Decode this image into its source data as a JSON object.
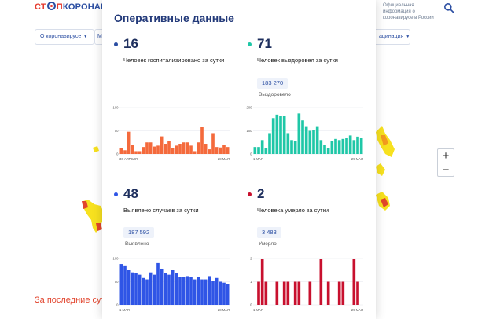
{
  "header": {
    "logo_part1": "СТ",
    "logo_part2": "П",
    "logo_part3": "КОРОНАВИ",
    "info_text": "Официальная информация о коронавирусе в России",
    "search_icon": "search-icon"
  },
  "nav": {
    "item1": "О коронавирусе",
    "item2": "М",
    "item3": "ацинация"
  },
  "map": {
    "bottom_link": "За последние сутки",
    "zoom_in": "+",
    "zoom_out": "−"
  },
  "panel": {
    "title": "Оперативные данные",
    "stats": [
      {
        "value": "16",
        "label": "Человек госпитализировано за сутки",
        "total": "",
        "total_label": "",
        "color": "#f46a3c",
        "dot_color": "#2b4ea2"
      },
      {
        "value": "71",
        "label": "Человек выздоровел за сутки",
        "total": "183 270",
        "total_label": "Выздоровело",
        "color": "#1fc7a7",
        "dot_color": "#1fc7a7"
      },
      {
        "value": "48",
        "label": "Выявлено случаев за сутки",
        "total": "187 592",
        "total_label": "Выявлено",
        "color": "#2f55e6",
        "dot_color": "#2f55e6"
      },
      {
        "value": "2",
        "label": "Человека умерло за сутки",
        "total": "3 483",
        "total_label": "Умерло",
        "color": "#c8102e",
        "dot_color": "#c8102e"
      }
    ]
  },
  "chart_data": [
    {
      "type": "bar",
      "color": "#f46a3c",
      "ylim": [
        0,
        100
      ],
      "y_ticks": [
        "100",
        "50",
        "0"
      ],
      "x_start": "30 АПРЕЛЯ",
      "x_end": "28 МАЯ",
      "values": [
        12,
        8,
        48,
        20,
        6,
        6,
        15,
        25,
        25,
        16,
        18,
        38,
        22,
        28,
        12,
        18,
        22,
        25,
        25,
        18,
        6,
        25,
        58,
        22,
        10,
        45,
        15,
        14,
        20,
        15
      ]
    },
    {
      "type": "bar",
      "color": "#1fc7a7",
      "ylim": [
        0,
        200
      ],
      "y_ticks": [
        "200",
        "100",
        "0"
      ],
      "x_start": "1 МАЯ",
      "x_end": "29 МАЯ",
      "values": [
        30,
        30,
        60,
        25,
        90,
        155,
        170,
        165,
        165,
        90,
        60,
        55,
        175,
        145,
        120,
        100,
        105,
        120,
        60,
        40,
        25,
        55,
        65,
        60,
        65,
        70,
        80,
        60,
        75,
        70
      ]
    },
    {
      "type": "bar",
      "color": "#2f55e6",
      "ylim": [
        0,
        100
      ],
      "y_ticks": [
        "100",
        "50",
        "0"
      ],
      "x_start": "1 МАЯ",
      "x_end": "28 МАЯ",
      "values": [
        88,
        85,
        75,
        70,
        68,
        65,
        58,
        55,
        70,
        65,
        90,
        78,
        68,
        65,
        75,
        68,
        60,
        60,
        62,
        60,
        55,
        60,
        55,
        55,
        62,
        52,
        58,
        50,
        48,
        45
      ]
    },
    {
      "type": "bar",
      "color": "#c8102e",
      "ylim": [
        0,
        2
      ],
      "y_ticks": [
        "2",
        "1",
        "0"
      ],
      "x_start": "1 МАЯ",
      "x_end": "29 МАЯ",
      "values": [
        0,
        1,
        2,
        1,
        0,
        0,
        1,
        0,
        1,
        1,
        0,
        1,
        1,
        0,
        0,
        1,
        0,
        0,
        2,
        0,
        1,
        0,
        0,
        1,
        1,
        0,
        0,
        2,
        1,
        0
      ]
    }
  ]
}
